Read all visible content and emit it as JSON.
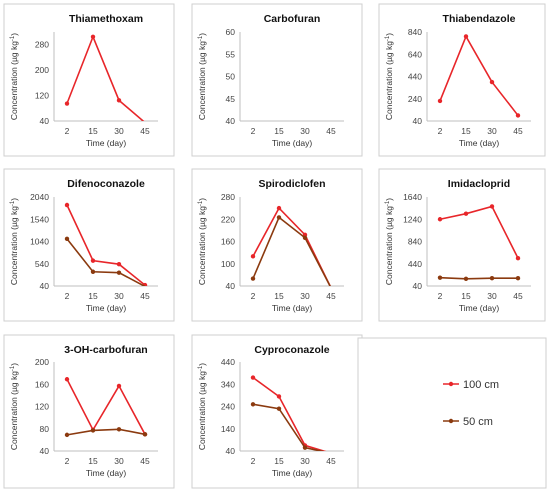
{
  "legend": {
    "entries": [
      {
        "label": "100 cm",
        "color": "#e8262a"
      },
      {
        "label": "50 cm",
        "color": "#8b3a0f"
      }
    ]
  },
  "chart_data": [
    {
      "type": "line",
      "title": "Thiamethoxam",
      "xlabel": "Time (day)",
      "ylabel": "Concentration  (µg kg",
      "ylabel_sup": "-1",
      "categories": [
        "2",
        "15",
        "30",
        "45"
      ],
      "yticks": [
        40,
        120,
        200,
        280
      ],
      "ylim": [
        40,
        320
      ],
      "series": [
        {
          "name": "100 cm",
          "color": "#e8262a",
          "values": [
            95,
            305,
            105,
            35
          ]
        }
      ]
    },
    {
      "type": "line",
      "title": "Carbofuran",
      "xlabel": "Time (day)",
      "ylabel": "Concentration  (µg kg",
      "ylabel_sup": "-1",
      "categories": [
        "2",
        "15",
        "30",
        "45"
      ],
      "yticks": [
        40,
        45,
        50,
        55,
        60
      ],
      "ylim": [
        40,
        60
      ],
      "series": []
    },
    {
      "type": "line",
      "title": "Thiabendazole",
      "xlabel": "Time (day)",
      "ylabel": "Concentration  (µg kg",
      "ylabel_sup": "-1",
      "categories": [
        "2",
        "15",
        "30",
        "45"
      ],
      "yticks": [
        40,
        240,
        440,
        640,
        840
      ],
      "ylim": [
        40,
        840
      ],
      "series": [
        {
          "name": "100 cm",
          "color": "#e8262a",
          "values": [
            220,
            800,
            390,
            90
          ]
        }
      ]
    },
    {
      "type": "line",
      "title": "Difenoconazole",
      "xlabel": "Time (day)",
      "ylabel": "Concentration  (µg kg",
      "ylabel_sup": "-1",
      "categories": [
        "2",
        "15",
        "30",
        "45"
      ],
      "yticks": [
        40,
        540,
        1040,
        1540,
        2040
      ],
      "ylim": [
        40,
        2040
      ],
      "series": [
        {
          "name": "100 cm",
          "color": "#e8262a",
          "values": [
            1860,
            610,
            530,
            60
          ]
        },
        {
          "name": "50 cm",
          "color": "#8b3a0f",
          "values": [
            1100,
            360,
            340,
            30
          ]
        }
      ]
    },
    {
      "type": "line",
      "title": "Spirodiclofen",
      "xlabel": "Time (day)",
      "ylabel": "Concentration  (µg kg",
      "ylabel_sup": "-1",
      "categories": [
        "2",
        "15",
        "30",
        "45"
      ],
      "yticks": [
        40,
        100,
        160,
        220,
        280
      ],
      "ylim": [
        40,
        280
      ],
      "series": [
        {
          "name": "100 cm",
          "color": "#e8262a",
          "values": [
            120,
            250,
            178,
            35
          ]
        },
        {
          "name": "50 cm",
          "color": "#8b3a0f",
          "values": [
            60,
            225,
            170,
            35
          ]
        }
      ]
    },
    {
      "type": "line",
      "title": "Imidacloprid",
      "xlabel": "Time (day)",
      "ylabel": "Concentration  (µg kg",
      "ylabel_sup": "-1",
      "categories": [
        "2",
        "15",
        "30",
        "45"
      ],
      "yticks": [
        40,
        440,
        840,
        1240,
        1640
      ],
      "ylim": [
        40,
        1640
      ],
      "series": [
        {
          "name": "100 cm",
          "color": "#e8262a",
          "values": [
            1240,
            1340,
            1470,
            540
          ]
        },
        {
          "name": "50 cm",
          "color": "#8b3a0f",
          "values": [
            190,
            170,
            180,
            180
          ]
        }
      ]
    },
    {
      "type": "line",
      "title": "3-OH-carbofuran",
      "xlabel": "Time (day)",
      "ylabel": "Concentration  (µg kg",
      "ylabel_sup": "-1",
      "categories": [
        "2",
        "15",
        "30",
        "45"
      ],
      "yticks": [
        40,
        80,
        120,
        160,
        200
      ],
      "ylim": [
        40,
        200
      ],
      "series": [
        {
          "name": "100 cm",
          "color": "#e8262a",
          "values": [
            169,
            78,
            157,
            70
          ]
        },
        {
          "name": "50 cm",
          "color": "#8b3a0f",
          "values": [
            69,
            77,
            79,
            70
          ]
        }
      ]
    },
    {
      "type": "line",
      "title": "Cyproconazole",
      "xlabel": "Time (day)",
      "ylabel": "Concentration  (µg kg",
      "ylabel_sup": "-1",
      "categories": [
        "2",
        "15",
        "30",
        "45"
      ],
      "yticks": [
        40,
        140,
        240,
        340,
        440
      ],
      "ylim": [
        40,
        440
      ],
      "series": [
        {
          "name": "100 cm",
          "color": "#e8262a",
          "values": [
            370,
            285,
            65,
            30
          ]
        },
        {
          "name": "50 cm",
          "color": "#8b3a0f",
          "values": [
            250,
            230,
            55,
            30
          ]
        }
      ]
    }
  ]
}
